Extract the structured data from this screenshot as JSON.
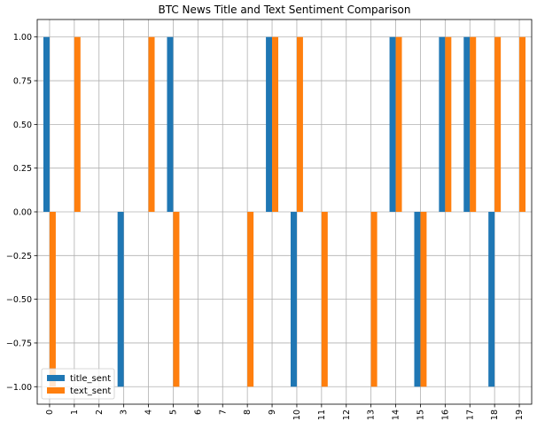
{
  "chart_data": {
    "type": "bar",
    "title": "BTC News Title and Text Sentiment Comparison",
    "xlabel": "",
    "ylabel": "",
    "categories": [
      "0",
      "1",
      "2",
      "3",
      "4",
      "5",
      "6",
      "7",
      "8",
      "9",
      "10",
      "11",
      "12",
      "13",
      "14",
      "15",
      "16",
      "17",
      "18",
      "19"
    ],
    "series": [
      {
        "name": "title_sent",
        "color": "#1f77b4",
        "values": [
          1,
          0,
          0,
          -1,
          0,
          1,
          0,
          0,
          0,
          1,
          -1,
          0,
          0,
          0,
          1,
          -1,
          1,
          1,
          -1,
          0
        ]
      },
      {
        "name": "text_sent",
        "color": "#ff7f0e",
        "values": [
          -1,
          1,
          0,
          0,
          1,
          -1,
          0,
          0,
          -1,
          1,
          1,
          -1,
          0,
          -1,
          1,
          -1,
          1,
          1,
          1,
          1
        ]
      }
    ],
    "ylim": [
      -1.1,
      1.1
    ],
    "yticks": [
      -1.0,
      -0.75,
      -0.5,
      -0.25,
      0.0,
      0.25,
      0.5,
      0.75,
      1.0
    ],
    "ytick_labels": [
      "−1.00",
      "−0.75",
      "−0.50",
      "−0.25",
      "0.00",
      "0.25",
      "0.50",
      "0.75",
      "1.00"
    ],
    "grid": true,
    "legend_position": "bottom-left",
    "xtick_rotation": "vertical"
  }
}
